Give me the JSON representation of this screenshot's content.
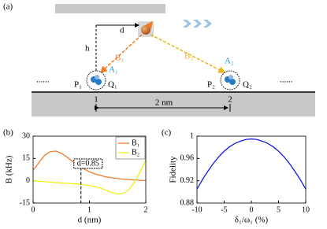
{
  "diagram": {
    "label": "(a)",
    "d": "d",
    "h": "h",
    "b1": "B₁",
    "b2": "B₂",
    "a1": "A₁",
    "a2": "A₂",
    "p1": "P₁",
    "q1": "Q₁",
    "p2": "P₂",
    "q2": "Q₂",
    "site1": "1",
    "site2": "2",
    "spacing": "2 nm",
    "dots_left": "......",
    "dots_right": "......"
  },
  "chart_data": [
    {
      "type": "line",
      "label": "(b)",
      "x_label": "d (nm)",
      "y_label": "B (kHz)",
      "x": [
        0,
        0.1,
        0.2,
        0.3,
        0.4,
        0.5,
        0.6,
        0.7,
        0.8,
        0.9,
        1.0,
        1.1,
        1.2,
        1.3,
        1.4,
        1.5,
        1.6,
        1.7,
        1.8,
        1.9,
        2.0
      ],
      "series": [
        {
          "name": "B₁",
          "color": "#f07c2a",
          "values": [
            7,
            12,
            17,
            19.5,
            20,
            18.5,
            16,
            13,
            10,
            8,
            6,
            4.5,
            3.5,
            2.5,
            2,
            1.5,
            1,
            0.8,
            0.5,
            0.3,
            0.2
          ]
        },
        {
          "name": "B₂",
          "color": "#f2ee1c",
          "values": [
            0,
            -0.3,
            -0.6,
            -0.9,
            -1.2,
            -1.5,
            -1.7,
            -2,
            -2.3,
            -2.7,
            -3.2,
            -4,
            -5,
            -6.5,
            -8,
            -9,
            -8.5,
            -6,
            -1,
            6,
            14
          ]
        }
      ],
      "xlim": [
        0,
        2
      ],
      "xticks": [
        0,
        1,
        2
      ],
      "ylim": [
        -15,
        30
      ],
      "yticks": [
        -15,
        0,
        15,
        30
      ],
      "annotation": "d=0.85",
      "annotation_x": 0.85,
      "legend": "upper right"
    },
    {
      "type": "line",
      "label": "(c)",
      "x_label": "δ₁/ω₁ (%)",
      "y_label": "Fidelity",
      "x": [
        -10,
        -9,
        -8,
        -7,
        -6,
        -5,
        -4,
        -3,
        -2,
        -1,
        0,
        1,
        2,
        3,
        4,
        5,
        6,
        7,
        8,
        9,
        10
      ],
      "series": [
        {
          "color": "#1a1adc",
          "values": [
            0.905,
            0.922,
            0.937,
            0.951,
            0.963,
            0.973,
            0.981,
            0.987,
            0.991,
            0.994,
            0.995,
            0.994,
            0.991,
            0.987,
            0.981,
            0.973,
            0.963,
            0.951,
            0.937,
            0.922,
            0.905
          ]
        }
      ],
      "xlim": [
        -10,
        10
      ],
      "xticks": [
        -10,
        -5,
        0,
        5,
        10
      ],
      "ylim": [
        0.88,
        1
      ],
      "yticks": [
        0.88,
        0.92,
        0.96,
        1
      ]
    }
  ]
}
